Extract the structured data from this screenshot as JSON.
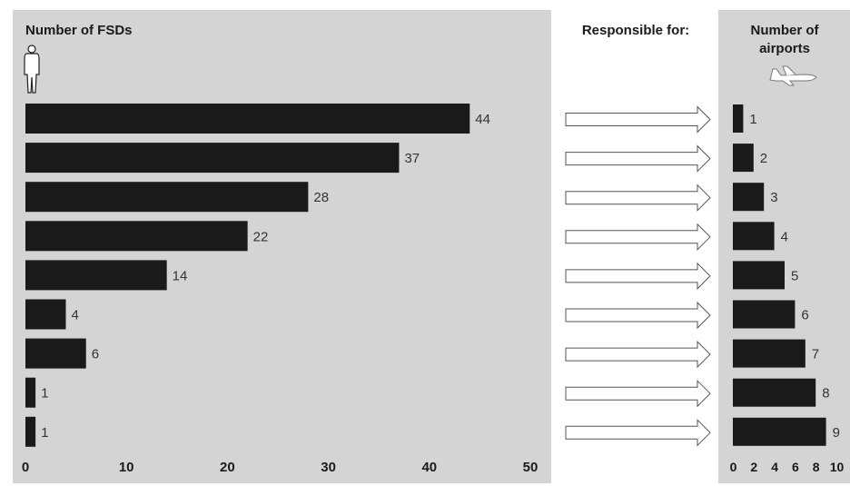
{
  "chart_data": {
    "type": "bar",
    "orientation": "horizontal",
    "left_panel": {
      "title": "Number of FSDs",
      "values": [
        44,
        37,
        28,
        22,
        14,
        4,
        6,
        1,
        1
      ],
      "xlim": [
        0,
        50
      ],
      "ticks": [
        0,
        10,
        20,
        30,
        40,
        50
      ]
    },
    "middle_panel": {
      "title": "Responsible for:"
    },
    "right_panel": {
      "title_line1": "Number of",
      "title_line2": "airports",
      "values": [
        1,
        2,
        3,
        4,
        5,
        6,
        7,
        8,
        9
      ],
      "xlim": [
        0,
        10
      ],
      "ticks": [
        0,
        2,
        4,
        6,
        8,
        10
      ]
    },
    "icons": {
      "left": "person-silhouette-icon",
      "right": "airplane-outline-icon"
    },
    "colors": {
      "panel_bg": "#d4d4d4",
      "bar": "#1a1a1a",
      "arrow_stroke": "#555555",
      "arrow_fill": "#ffffff",
      "text": "#1a1a1a"
    }
  }
}
